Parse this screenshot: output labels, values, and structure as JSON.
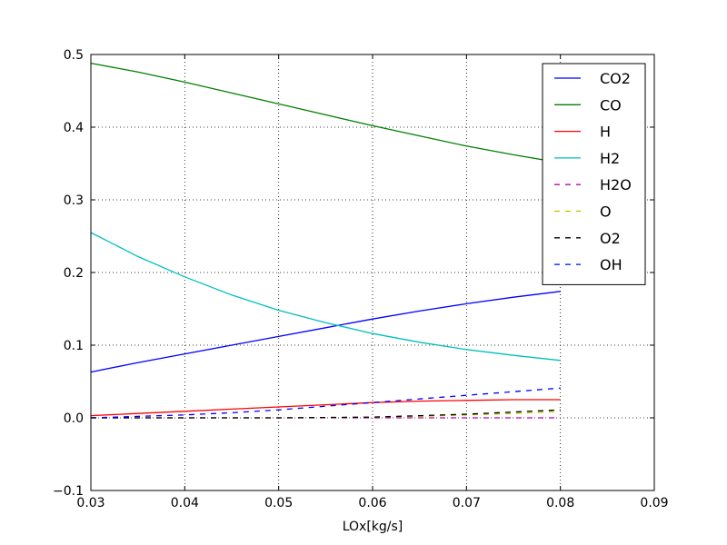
{
  "chart_data": {
    "type": "line",
    "title": "",
    "xlabel": "LOx[kg/s]",
    "ylabel": "",
    "xlim": [
      0.03,
      0.09
    ],
    "ylim": [
      -0.1,
      0.5
    ],
    "xticks": [
      "0.03",
      "0.04",
      "0.05",
      "0.06",
      "0.07",
      "0.08",
      "0.09"
    ],
    "yticks": [
      "−0.1",
      "0.0",
      "0.1",
      "0.2",
      "0.3",
      "0.4",
      "0.5"
    ],
    "grid": true,
    "legend_position": "top-right",
    "x": [
      0.03,
      0.035,
      0.04,
      0.045,
      0.05,
      0.055,
      0.06,
      0.065,
      0.07,
      0.075,
      0.08
    ],
    "series": [
      {
        "name": "CO2",
        "color": "#0000ff",
        "dashed": false,
        "values": [
          0.063,
          0.076,
          0.088,
          0.1,
          0.112,
          0.124,
          0.136,
          0.147,
          0.157,
          0.166,
          0.174
        ]
      },
      {
        "name": "CO",
        "color": "#008000",
        "dashed": false,
        "values": [
          0.488,
          0.476,
          0.462,
          0.447,
          0.432,
          0.417,
          0.402,
          0.388,
          0.374,
          0.362,
          0.351
        ]
      },
      {
        "name": "H",
        "color": "#ff0000",
        "dashed": false,
        "values": [
          0.003,
          0.006,
          0.009,
          0.012,
          0.015,
          0.018,
          0.021,
          0.023,
          0.024,
          0.025,
          0.025
        ]
      },
      {
        "name": "H2",
        "color": "#00bfbf",
        "dashed": false,
        "values": [
          0.255,
          0.222,
          0.194,
          0.169,
          0.148,
          0.131,
          0.116,
          0.104,
          0.094,
          0.086,
          0.079
        ]
      },
      {
        "name": "H2O",
        "color": "#bf00bf",
        "dashed": true,
        "values": [
          0.0,
          0.0,
          0.0,
          0.0,
          0.0,
          0.0,
          0.0,
          0.0,
          0.0,
          0.0,
          0.0
        ]
      },
      {
        "name": "O",
        "color": "#bfbf00",
        "dashed": true,
        "values": [
          0.0,
          0.0,
          0.0,
          0.0,
          0.0,
          0.0005,
          0.001,
          0.002,
          0.004,
          0.006,
          0.009
        ]
      },
      {
        "name": "O2",
        "color": "#000000",
        "dashed": true,
        "values": [
          0.0,
          0.0,
          0.0,
          0.0,
          0.0,
          0.0005,
          0.001,
          0.003,
          0.005,
          0.008,
          0.011
        ]
      },
      {
        "name": "OH",
        "color": "#0000ff",
        "dashed": true,
        "values": [
          0.0,
          0.002,
          0.004,
          0.007,
          0.011,
          0.016,
          0.021,
          0.026,
          0.031,
          0.036,
          0.041
        ]
      }
    ]
  }
}
